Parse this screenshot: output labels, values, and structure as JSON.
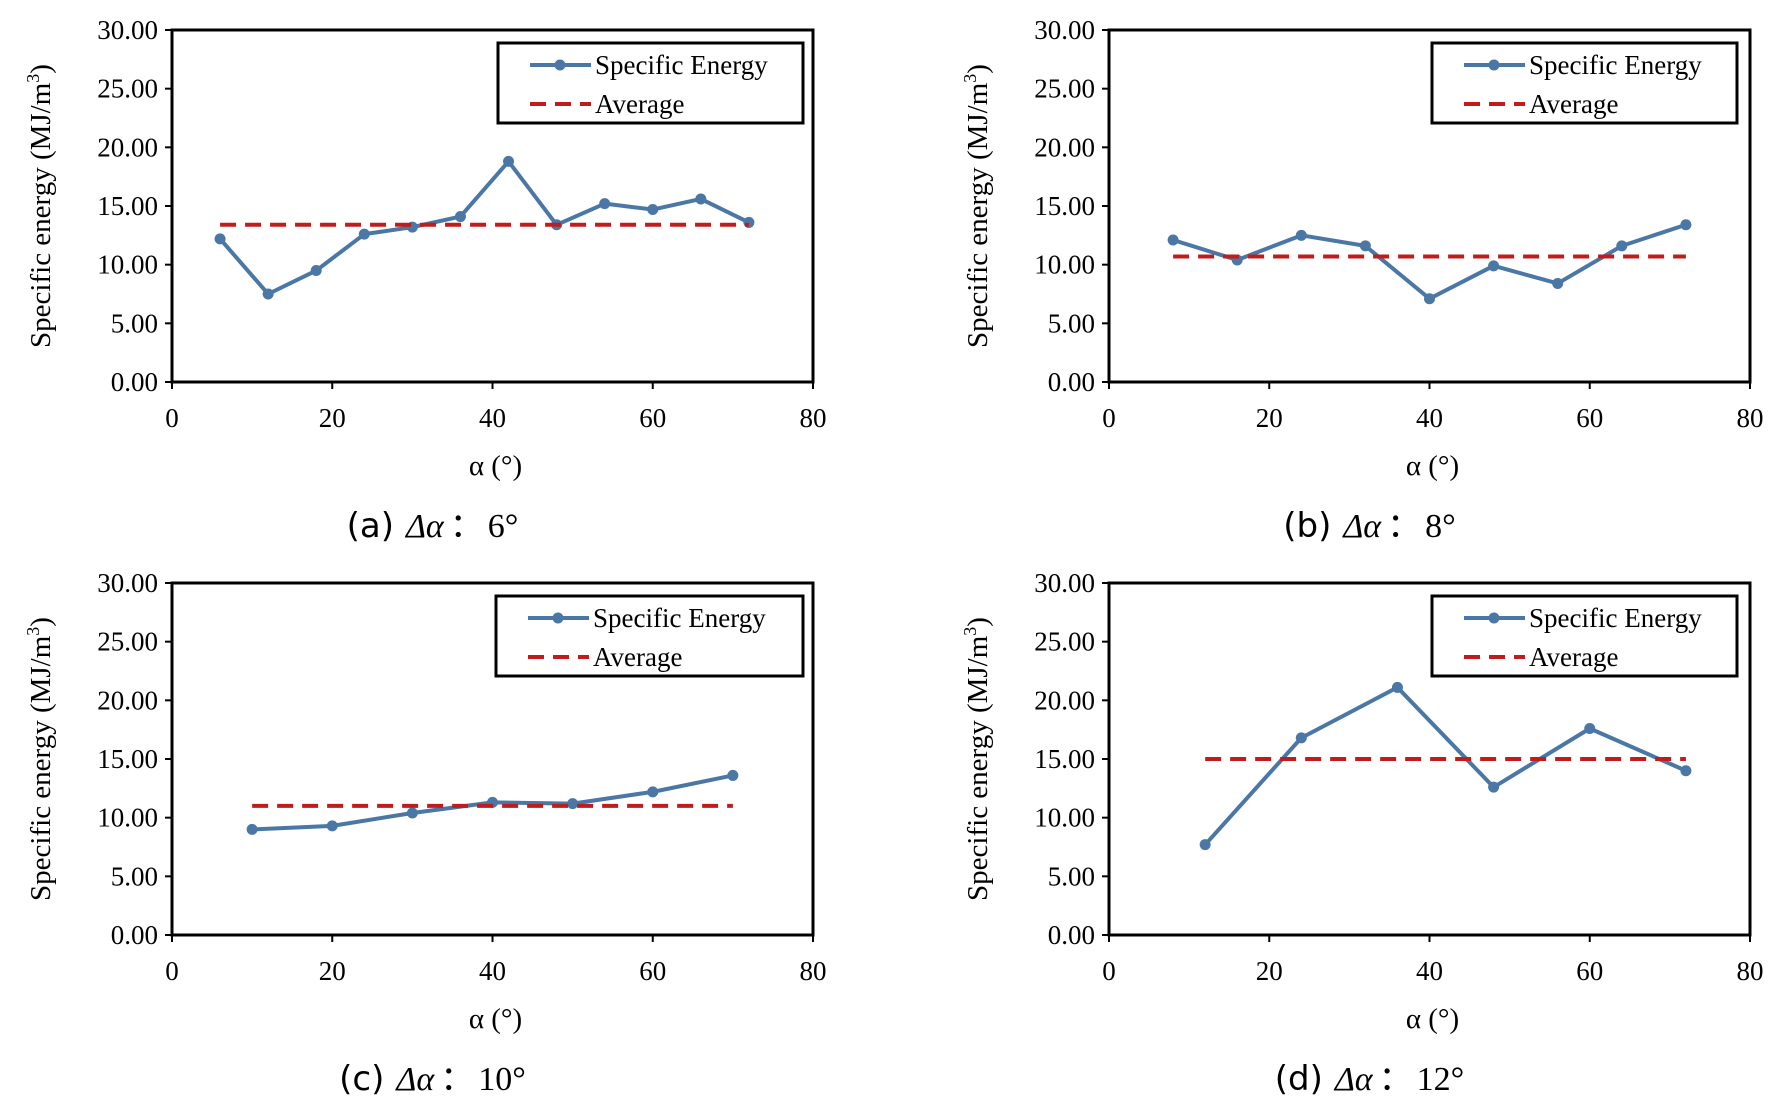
{
  "colors": {
    "series": "#4a77a5",
    "average": "#c01c1c",
    "axis": "#000000",
    "background": "#ffffff"
  },
  "chart_data": [
    {
      "type": "line",
      "caption": {
        "label": "(a)",
        "symbol": "Δα",
        "sep": "：",
        "value": "6°"
      },
      "xlabel": "α (°)",
      "ylabel": "Specific energy (MJ/m",
      "ylabel_sup": "3",
      "ylabel_close": ")",
      "xlim": [
        0,
        80
      ],
      "ylim": [
        0,
        30
      ],
      "xticks": [
        "0",
        "20",
        "40",
        "60",
        "80"
      ],
      "yticks": [
        "0.00",
        "5.00",
        "10.00",
        "15.00",
        "20.00",
        "25.00",
        "30.00"
      ],
      "grid": false,
      "legend_position": "top-right",
      "legend": [
        "Specific Energy",
        "Average"
      ],
      "series": [
        {
          "name": "Specific Energy",
          "x": [
            6,
            12,
            18,
            24,
            30,
            36,
            42,
            48,
            54,
            60,
            66,
            72
          ],
          "y": [
            12.2,
            7.5,
            9.5,
            12.6,
            13.2,
            14.1,
            18.8,
            13.4,
            15.2,
            14.7,
            15.6,
            13.6
          ]
        },
        {
          "name": "Average",
          "x": [
            6,
            72
          ],
          "y": [
            13.4,
            13.4
          ]
        }
      ]
    },
    {
      "type": "line",
      "caption": {
        "label": "(b)",
        "symbol": "Δα",
        "sep": "：",
        "value": "8°"
      },
      "xlabel": "α (°)",
      "ylabel": "Specific energy (MJ/m",
      "ylabel_sup": "3",
      "ylabel_close": ")",
      "xlim": [
        0,
        80
      ],
      "ylim": [
        0,
        30
      ],
      "xticks": [
        "0",
        "20",
        "40",
        "60",
        "80"
      ],
      "yticks": [
        "0.00",
        "5.00",
        "10.00",
        "15.00",
        "20.00",
        "25.00",
        "30.00"
      ],
      "grid": false,
      "legend_position": "top-right",
      "legend": [
        "Specific Energy",
        "Average"
      ],
      "series": [
        {
          "name": "Specific Energy",
          "x": [
            8,
            16,
            24,
            32,
            40,
            48,
            56,
            64,
            72
          ],
          "y": [
            12.1,
            10.4,
            12.5,
            11.6,
            7.1,
            9.9,
            8.4,
            11.6,
            13.4
          ]
        },
        {
          "name": "Average",
          "x": [
            8,
            72
          ],
          "y": [
            10.7,
            10.7
          ]
        }
      ]
    },
    {
      "type": "line",
      "caption": {
        "label": "(c)",
        "symbol": "Δα",
        "sep": "：",
        "value": "10°"
      },
      "xlabel": "α (°)",
      "ylabel": "Specific energy (MJ/m",
      "ylabel_sup": "3",
      "ylabel_close": ")",
      "xlim": [
        0,
        80
      ],
      "ylim": [
        0,
        30
      ],
      "xticks": [
        "0",
        "20",
        "40",
        "60",
        "80"
      ],
      "yticks": [
        "0.00",
        "5.00",
        "10.00",
        "15.00",
        "20.00",
        "25.00",
        "30.00"
      ],
      "grid": false,
      "legend_position": "top-right",
      "legend": [
        "Specific Energy",
        "Average"
      ],
      "series": [
        {
          "name": "Specific Energy",
          "x": [
            10,
            20,
            30,
            40,
            50,
            60,
            70
          ],
          "y": [
            9.0,
            9.3,
            10.4,
            11.3,
            11.2,
            12.2,
            13.6
          ]
        },
        {
          "name": "Average",
          "x": [
            10,
            70
          ],
          "y": [
            11.0,
            11.0
          ]
        }
      ]
    },
    {
      "type": "line",
      "caption": {
        "label": "(d)",
        "symbol": "Δα",
        "sep": "：",
        "value": "12°"
      },
      "xlabel": "α (°)",
      "ylabel": "Specific energy (MJ/m",
      "ylabel_sup": "3",
      "ylabel_close": ")",
      "xlim": [
        0,
        80
      ],
      "ylim": [
        0,
        30
      ],
      "xticks": [
        "0",
        "20",
        "40",
        "60",
        "80"
      ],
      "yticks": [
        "0.00",
        "5.00",
        "10.00",
        "15.00",
        "20.00",
        "25.00",
        "30.00"
      ],
      "grid": false,
      "legend_position": "top-right",
      "legend": [
        "Specific Energy",
        "Average"
      ],
      "series": [
        {
          "name": "Specific Energy",
          "x": [
            12,
            24,
            36,
            48,
            60,
            72
          ],
          "y": [
            7.7,
            16.8,
            21.1,
            12.6,
            17.6,
            14.0
          ]
        },
        {
          "name": "Average",
          "x": [
            12,
            72
          ],
          "y": [
            15.0,
            15.0
          ]
        }
      ]
    }
  ]
}
